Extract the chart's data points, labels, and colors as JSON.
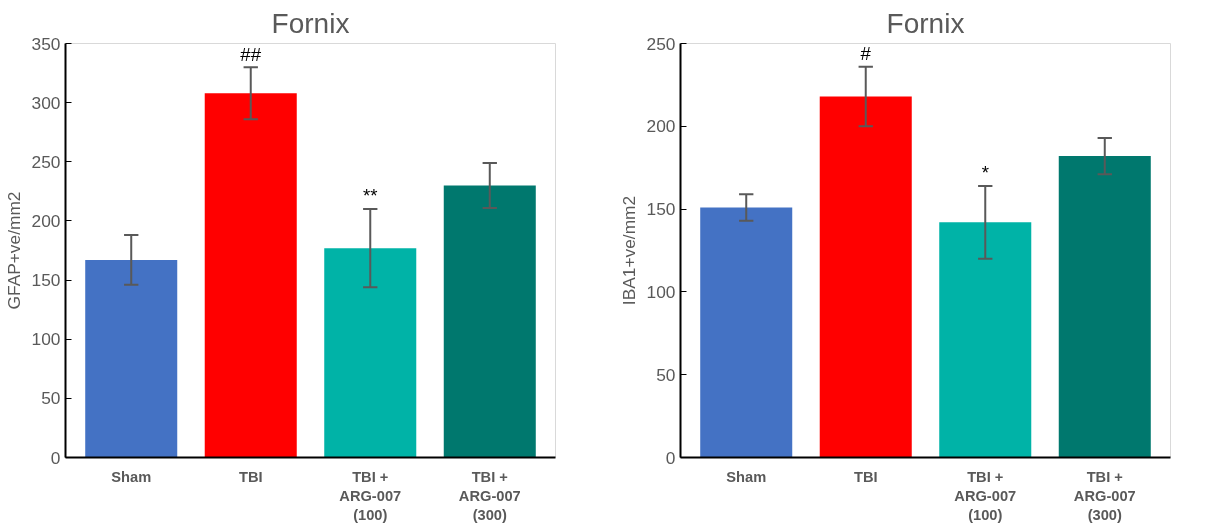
{
  "chart_data": [
    {
      "type": "bar",
      "title": "Fornix",
      "ylabel": "GFAP+ve/mm2",
      "categories": [
        "Sham",
        "TBI",
        "TBI + ARG-007 (100)",
        "TBI + ARG-007 (300)"
      ],
      "values": [
        167,
        308,
        177,
        230
      ],
      "errors": [
        21,
        22,
        33,
        19
      ],
      "colors": [
        "#4472c4",
        "#ff0000",
        "#00b3a7",
        "#00786e"
      ],
      "ylim": [
        0,
        350
      ],
      "yticks": [
        0,
        50,
        100,
        150,
        200,
        250,
        300,
        350
      ],
      "grid": false,
      "annotations": [
        {
          "text": "##",
          "x": "TBI",
          "y": 329
        },
        {
          "text": "**",
          "x": "TBI + ARG-007 (100)",
          "y": 210
        }
      ]
    },
    {
      "type": "bar",
      "title": "Fornix",
      "ylabel": "IBA1+ve/mm2",
      "categories": [
        "Sham",
        "TBI",
        "TBI + ARG-007 (100)",
        "TBI + ARG-007 (300)"
      ],
      "values": [
        151,
        218,
        142,
        182
      ],
      "errors": [
        8,
        18,
        22,
        11
      ],
      "colors": [
        "#4472c4",
        "#ff0000",
        "#00b3a7",
        "#00786e"
      ],
      "ylim": [
        0,
        250
      ],
      "yticks": [
        0,
        50,
        100,
        150,
        200,
        250
      ],
      "grid": false,
      "annotations": [
        {
          "text": "#",
          "x": "TBI",
          "y": 236
        },
        {
          "text": "*",
          "x": "TBI + ARG-007 (100)",
          "y": 164
        }
      ]
    }
  ]
}
